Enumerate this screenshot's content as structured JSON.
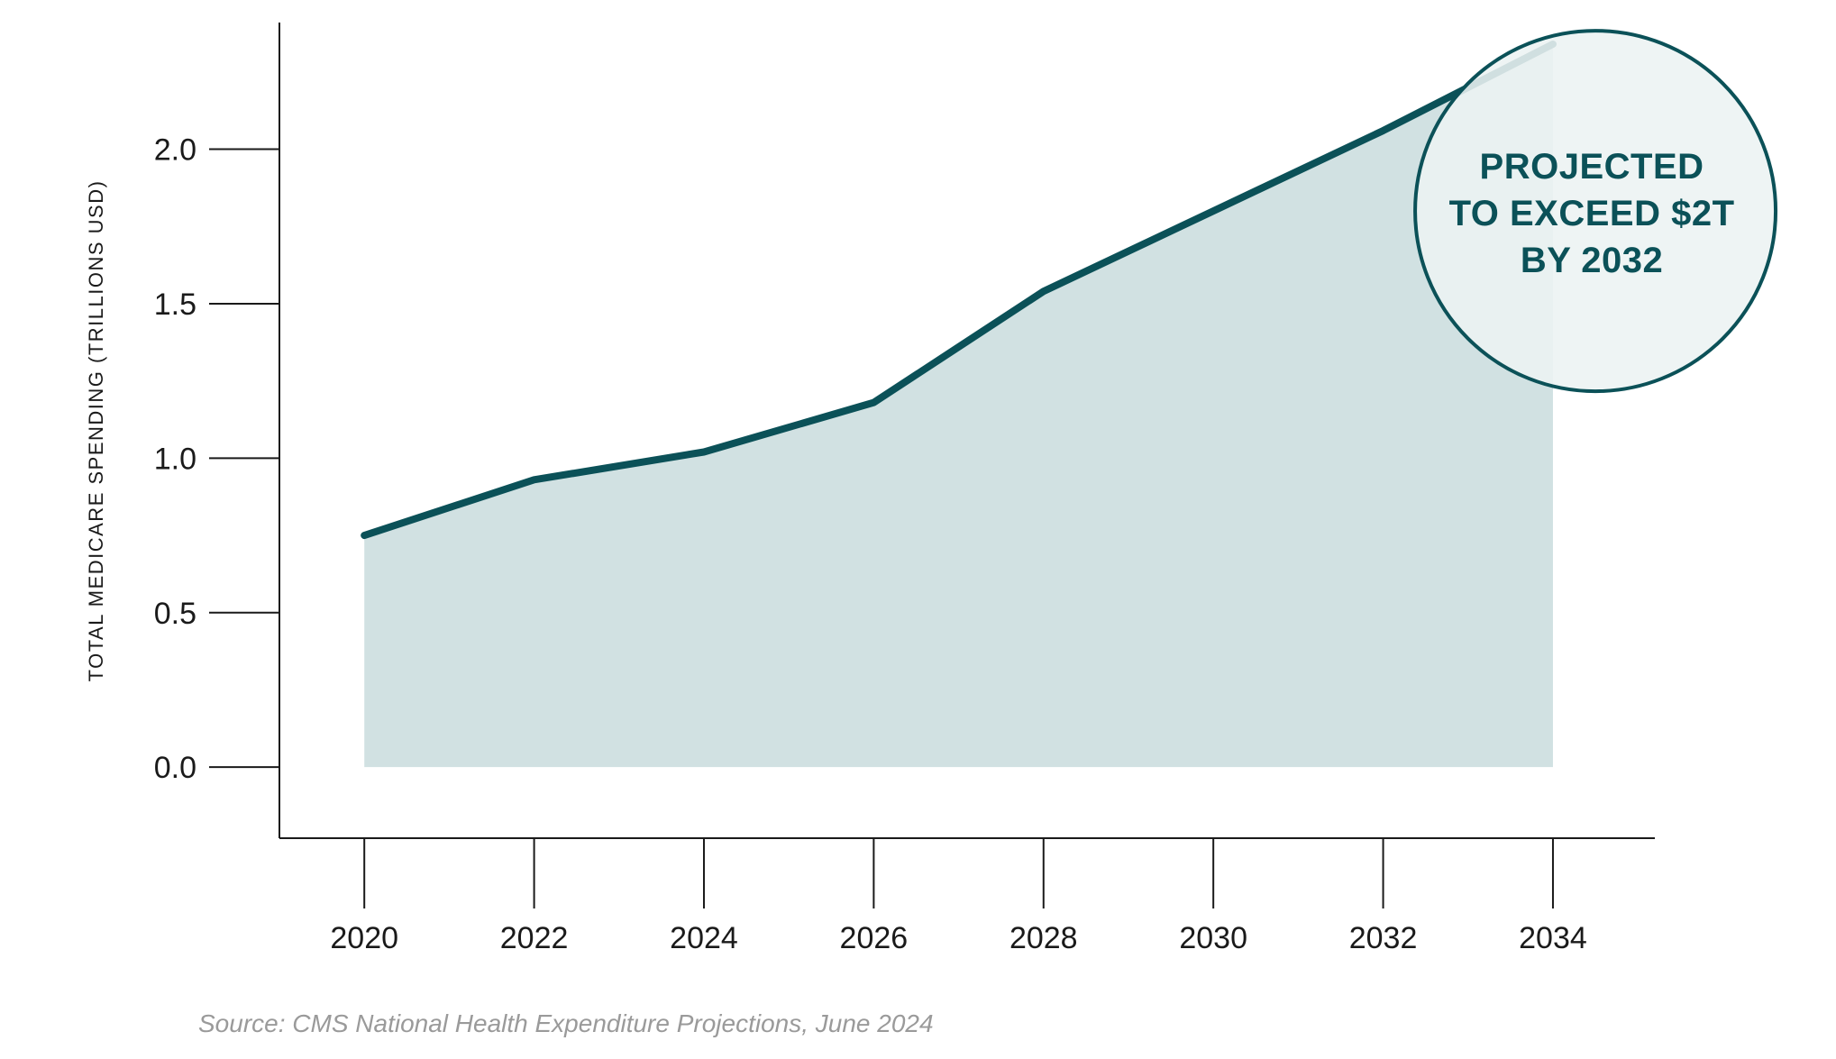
{
  "colors": {
    "line": "#0b5158",
    "area": "#d1e1e2",
    "callout_fill": "#ecf3f3",
    "callout_stroke": "#0b5158",
    "axis": "#1a1a1a",
    "source_text": "#9a9a9a"
  },
  "chart_data": {
    "type": "area",
    "x": [
      2020,
      2022,
      2024,
      2026,
      2028,
      2030,
      2032,
      2034
    ],
    "series": [
      {
        "values": [
          0.75,
          0.93,
          1.02,
          1.18,
          1.54,
          1.8,
          2.06,
          2.34
        ]
      }
    ],
    "xlim": [
      2019,
      2035.2
    ],
    "ylim": [
      -0.23,
      2.41
    ],
    "y_ticks": [
      0.0,
      0.5,
      1.0,
      1.5,
      2.0
    ],
    "y_tick_labels": [
      "0.0",
      "0.5",
      "1.0",
      "1.5",
      "2.0"
    ],
    "x_ticks": [
      2020,
      2022,
      2024,
      2026,
      2028,
      2030,
      2032,
      2034
    ],
    "x_tick_labels": [
      "2020",
      "2022",
      "2024",
      "2026",
      "2028",
      "2030",
      "2032",
      "2034"
    ],
    "ylabel": "TOTAL MEDICARE SPENDING (TRILLIONS USD)",
    "xlabel": "",
    "grid": false,
    "annotation": {
      "lines": [
        "PROJECTED",
        "TO EXCEED $2T",
        "BY 2032"
      ],
      "anchor": "upper-right, around 2034.5 and 1.8"
    }
  },
  "source": "Source: CMS National Health Expenditure Projections, June 2024"
}
